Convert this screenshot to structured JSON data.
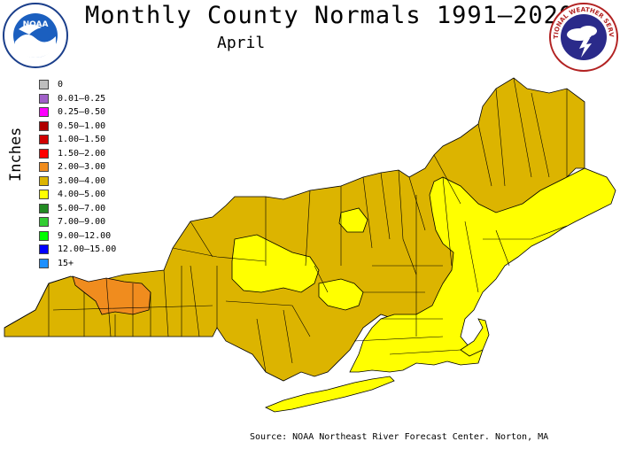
{
  "header": {
    "title": "Monthly County Normals 1991–2020",
    "subtitle": "April"
  },
  "logos": {
    "noaa_text": "NOAA",
    "nws_text": "NATIONAL WEATHER SERVICE"
  },
  "axis": {
    "label": "Inches"
  },
  "legend": [
    {
      "label": "0",
      "color": "#bebebe"
    },
    {
      "label": "0.01–0.25",
      "color": "#a060c8"
    },
    {
      "label": "0.25–0.50",
      "color": "#ff00ff"
    },
    {
      "label": "0.50–1.00",
      "color": "#b00000"
    },
    {
      "label": "1.00–1.50",
      "color": "#d00000"
    },
    {
      "label": "1.50–2.00",
      "color": "#ff0000"
    },
    {
      "label": "2.00–3.00",
      "color": "#f08c1e"
    },
    {
      "label": "3.00–4.00",
      "color": "#dcb400"
    },
    {
      "label": "4.00–5.00",
      "color": "#ffff00"
    },
    {
      "label": "5.00–7.00",
      "color": "#228b22"
    },
    {
      "label": "7.00–9.00",
      "color": "#32cd32"
    },
    {
      "label": "9.00–12.00",
      "color": "#00ff00"
    },
    {
      "label": "12.00–15.00",
      "color": "#0000ff"
    },
    {
      "label": "15+",
      "color": "#1e90ff"
    }
  ],
  "map_colors": {
    "range_3_4": "#dcb400",
    "range_4_5": "#ffff00",
    "range_2_3": "#f08c1e"
  },
  "footer": {
    "source": "Source: NOAA Northeast River Forecast Center. Norton, MA"
  }
}
